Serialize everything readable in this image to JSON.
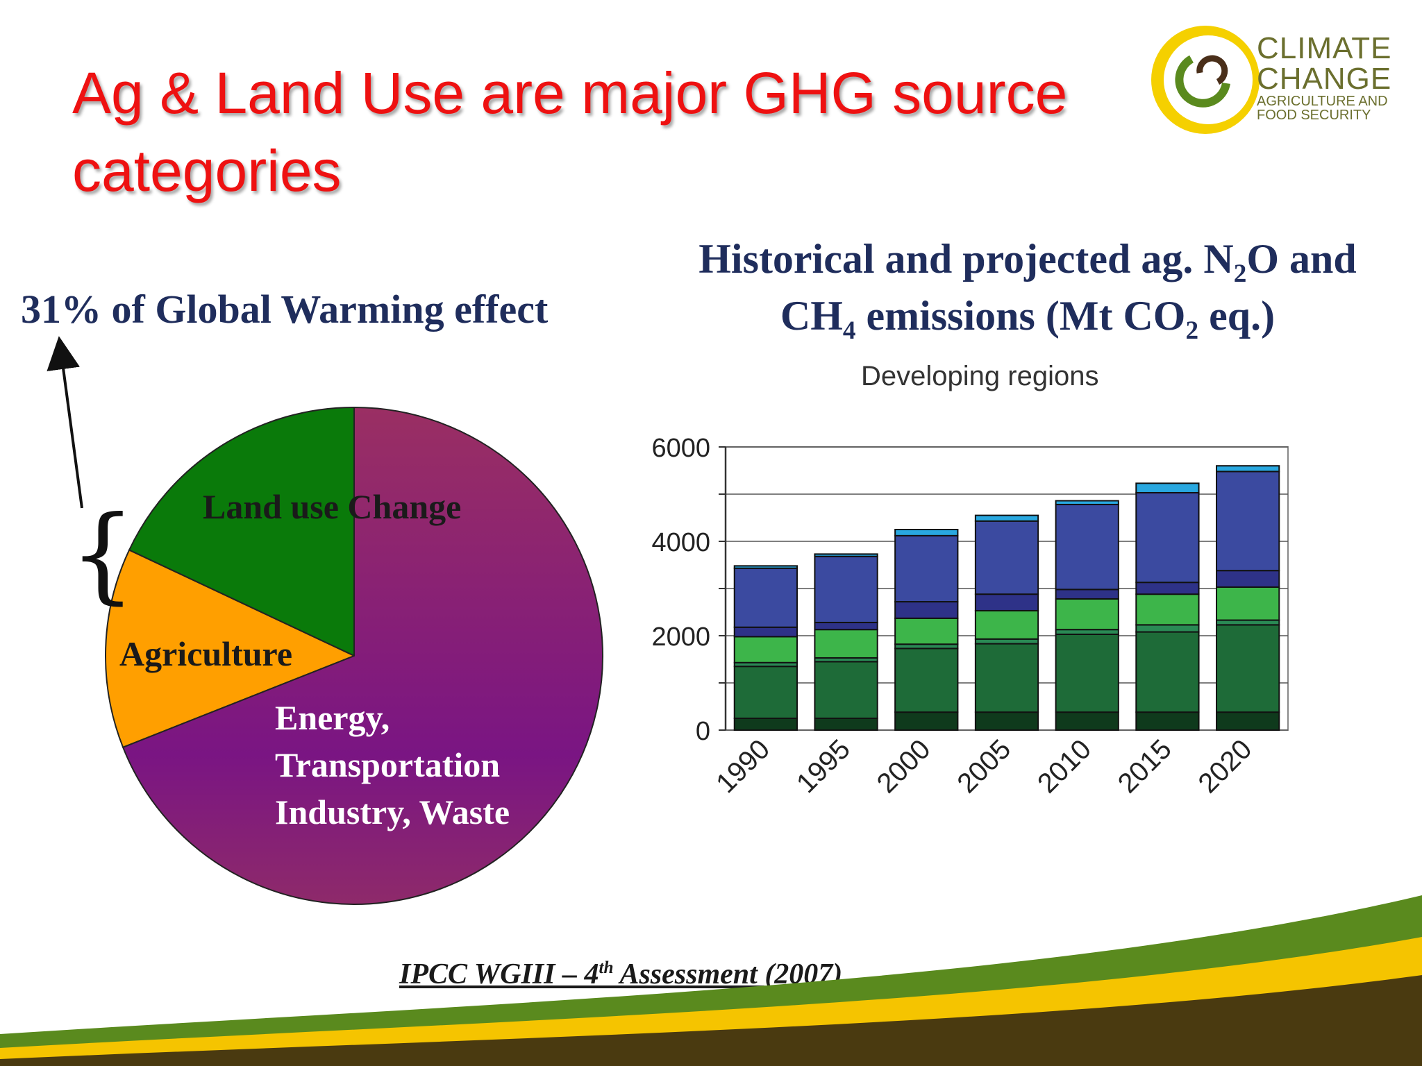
{
  "slide": {
    "title": "Ag & Land Use are major GHG source categories",
    "gw_label": "31% of  Global Warming effect",
    "chart_heading_parts": [
      "Historical and projected ag. N",
      "2",
      "O and",
      "CH",
      "4",
      " emissions (Mt CO",
      "2",
      " eq.)"
    ],
    "citation_main": "IPCC  WGIII – 4",
    "citation_sup": "th",
    "citation_tail": " Assessment (2007)"
  },
  "logo": {
    "line1": "CLIMATE",
    "line2": "CHANGE",
    "line3": "AGRICULTURE AND",
    "line4": "FOOD SECURITY"
  },
  "colors": {
    "title_red": "#ee1111",
    "navy": "#1f2d5c",
    "pie_energy": "#8e2a6a",
    "pie_agriculture": "#ff9f00",
    "pie_landuse": "#0a7a0a",
    "footer_green": "#5a8a1e",
    "footer_yellow": "#f5c400",
    "footer_brown": "#4a3a10"
  },
  "chart_data": [
    {
      "type": "pie",
      "slices": [
        {
          "label": "Land use Change",
          "value": 18,
          "color": "#0a7a0a"
        },
        {
          "label": "Agriculture",
          "value": 13,
          "color": "#ff9f00"
        },
        {
          "label": "Energy, Transportation Industry, Waste",
          "value": 69,
          "color": "#8e2a6a"
        }
      ],
      "annotation": "31% of  Global Warming effect"
    },
    {
      "type": "bar",
      "stacked": true,
      "title": "Developing regions",
      "categories": [
        "1990",
        "1995",
        "2000",
        "2005",
        "2010",
        "2015",
        "2020"
      ],
      "ylim": [
        0,
        6000
      ],
      "yticks": [
        0,
        2000,
        4000,
        6000
      ],
      "series": [
        {
          "color": "#0f3a1c",
          "values": [
            250,
            250,
            380,
            380,
            380,
            380,
            380
          ]
        },
        {
          "color": "#1e6b38",
          "values": [
            1100,
            1200,
            1350,
            1450,
            1650,
            1700,
            1850
          ]
        },
        {
          "color": "#2a8a55",
          "values": [
            80,
            80,
            90,
            100,
            100,
            150,
            100
          ]
        },
        {
          "color": "#3db54a",
          "values": [
            550,
            600,
            550,
            600,
            650,
            650,
            700
          ]
        },
        {
          "color": "#2e3288",
          "values": [
            200,
            150,
            350,
            350,
            200,
            250,
            350
          ]
        },
        {
          "color": "#3b4aa0",
          "values": [
            1250,
            1400,
            1400,
            1550,
            1800,
            1900,
            2100
          ]
        },
        {
          "color": "#29a8e0",
          "values": [
            50,
            50,
            130,
            120,
            80,
            200,
            120
          ]
        }
      ]
    }
  ]
}
